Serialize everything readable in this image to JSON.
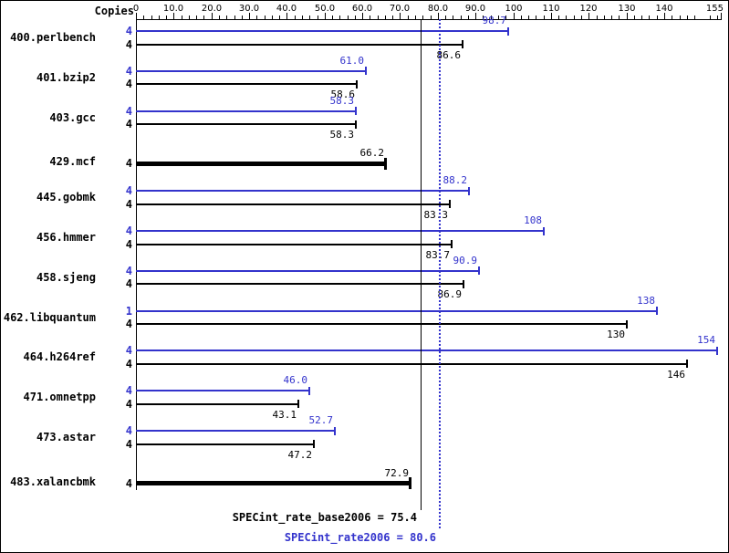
{
  "header": {
    "copies_label": "Copies"
  },
  "colors": {
    "peak": "#3333cc",
    "base": "#000000",
    "background": "#ffffff"
  },
  "chart_data": {
    "type": "bar",
    "orientation": "horizontal",
    "xlim": [
      0,
      155
    ],
    "legend": "blue top bar per group = SPECint_rate2006 (peak), black bottom bar = SPECint_rate_base2006; thick single black bar = base and peak equal",
    "axis": {
      "min": 0,
      "max": 155,
      "minor_step": 2,
      "ticks": [
        {
          "value": 0,
          "label": "0"
        },
        {
          "value": 10,
          "label": "10.0"
        },
        {
          "value": 20,
          "label": "20.0"
        },
        {
          "value": 30,
          "label": "30.0"
        },
        {
          "value": 40,
          "label": "40.0"
        },
        {
          "value": 50,
          "label": "50.0"
        },
        {
          "value": 60,
          "label": "60.0"
        },
        {
          "value": 70,
          "label": "70.0"
        },
        {
          "value": 80,
          "label": "80.0"
        },
        {
          "value": 90,
          "label": "90.0"
        },
        {
          "value": 100,
          "label": "100"
        },
        {
          "value": 110,
          "label": "110"
        },
        {
          "value": 120,
          "label": "120"
        },
        {
          "value": 130,
          "label": "130"
        },
        {
          "value": 140,
          "label": "140"
        },
        {
          "value": 155,
          "label": "155"
        }
      ]
    },
    "benchmarks": [
      {
        "name": "400.perlbench",
        "bars": [
          {
            "kind": "peak",
            "copies": "4",
            "value": 98.7,
            "label": "98.7"
          },
          {
            "kind": "base",
            "copies": "4",
            "value": 86.6,
            "label": "86.6"
          }
        ]
      },
      {
        "name": "401.bzip2",
        "bars": [
          {
            "kind": "peak",
            "copies": "4",
            "value": 61.0,
            "label": "61.0"
          },
          {
            "kind": "base",
            "copies": "4",
            "value": 58.6,
            "label": "58.6"
          }
        ]
      },
      {
        "name": "403.gcc",
        "bars": [
          {
            "kind": "peak",
            "copies": "4",
            "value": 58.3,
            "label": "58.3"
          },
          {
            "kind": "base",
            "copies": "4",
            "value": 58.3,
            "label": "58.3"
          }
        ]
      },
      {
        "name": "429.mcf",
        "bars": [
          {
            "kind": "base-peak",
            "copies": "4",
            "value": 66.2,
            "label": "66.2"
          }
        ]
      },
      {
        "name": "445.gobmk",
        "bars": [
          {
            "kind": "peak",
            "copies": "4",
            "value": 88.2,
            "label": "88.2"
          },
          {
            "kind": "base",
            "copies": "4",
            "value": 83.3,
            "label": "83.3"
          }
        ]
      },
      {
        "name": "456.hmmer",
        "bars": [
          {
            "kind": "peak",
            "copies": "4",
            "value": 108,
            "label": "108"
          },
          {
            "kind": "base",
            "copies": "4",
            "value": 83.7,
            "label": "83.7"
          }
        ]
      },
      {
        "name": "458.sjeng",
        "bars": [
          {
            "kind": "peak",
            "copies": "4",
            "value": 90.9,
            "label": "90.9"
          },
          {
            "kind": "base",
            "copies": "4",
            "value": 86.9,
            "label": "86.9"
          }
        ]
      },
      {
        "name": "462.libquantum",
        "bars": [
          {
            "kind": "peak",
            "copies": "1",
            "value": 138,
            "label": "138"
          },
          {
            "kind": "base",
            "copies": "4",
            "value": 130,
            "label": "130"
          }
        ]
      },
      {
        "name": "464.h264ref",
        "bars": [
          {
            "kind": "peak",
            "copies": "4",
            "value": 154,
            "label": "154"
          },
          {
            "kind": "base",
            "copies": "4",
            "value": 146,
            "label": "146"
          }
        ]
      },
      {
        "name": "471.omnetpp",
        "bars": [
          {
            "kind": "peak",
            "copies": "4",
            "value": 46.0,
            "label": "46.0"
          },
          {
            "kind": "base",
            "copies": "4",
            "value": 43.1,
            "label": "43.1"
          }
        ]
      },
      {
        "name": "473.astar",
        "bars": [
          {
            "kind": "peak",
            "copies": "4",
            "value": 52.7,
            "label": "52.7"
          },
          {
            "kind": "base",
            "copies": "4",
            "value": 47.2,
            "label": "47.2"
          }
        ]
      },
      {
        "name": "483.xalancbmk",
        "bars": [
          {
            "kind": "base-peak",
            "copies": "4",
            "value": 72.9,
            "label": "72.9"
          }
        ]
      }
    ],
    "summary": {
      "base": {
        "label": "SPECint_rate_base2006 = 75.4",
        "value": 75.4
      },
      "peak": {
        "label": "SPECint_rate2006 = 80.6",
        "value": 80.6
      }
    }
  }
}
